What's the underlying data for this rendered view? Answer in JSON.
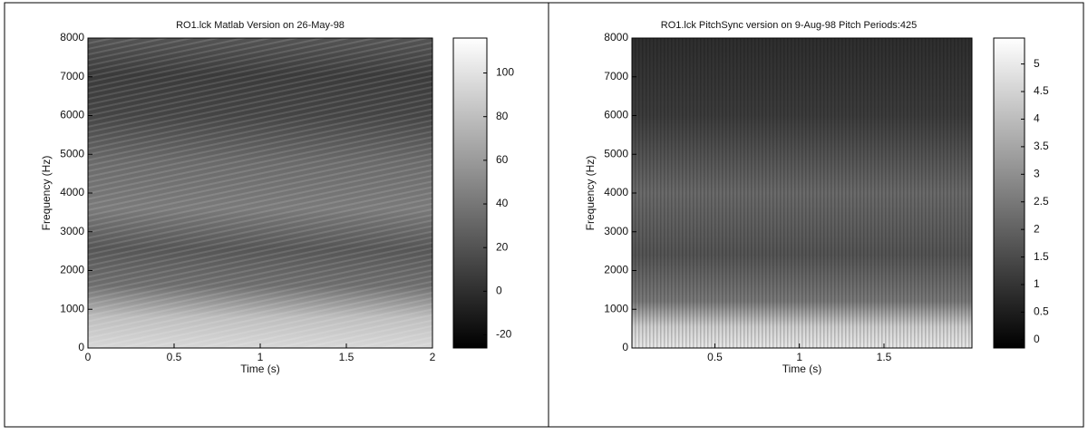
{
  "chart_data": [
    {
      "type": "spectrogram",
      "title": "RO1.lck Matlab Version on 26-May-98",
      "xlabel": "Time (s)",
      "ylabel": "Frequency (Hz)",
      "xlim": [
        0,
        2
      ],
      "xticks": [
        0,
        0.5,
        1,
        1.5,
        2
      ],
      "ylim": [
        0,
        8000
      ],
      "yticks": [
        0,
        1000,
        2000,
        3000,
        4000,
        5000,
        6000,
        7000,
        8000
      ],
      "colormap": "gray",
      "colorbar": {
        "clim": [
          -26,
          116
        ],
        "ticks": [
          -20,
          0,
          20,
          40,
          60,
          80,
          100
        ]
      }
    },
    {
      "type": "spectrogram",
      "title": "RO1.lck PitchSync version on 9-Aug-98  Pitch Periods:425",
      "xlabel": "Time (s)",
      "ylabel": "Frequency (Hz)",
      "xlim": [
        0.01,
        2.02
      ],
      "xticks": [
        0.5,
        1,
        1.5
      ],
      "ylim": [
        0,
        8000
      ],
      "yticks": [
        0,
        1000,
        2000,
        3000,
        4000,
        5000,
        6000,
        7000,
        8000
      ],
      "colormap": "gray",
      "colorbar": {
        "clim": [
          -0.15,
          5.47
        ],
        "ticks": [
          0,
          0.5,
          1,
          1.5,
          2,
          2.5,
          3,
          3.5,
          4,
          4.5,
          5
        ]
      }
    }
  ]
}
